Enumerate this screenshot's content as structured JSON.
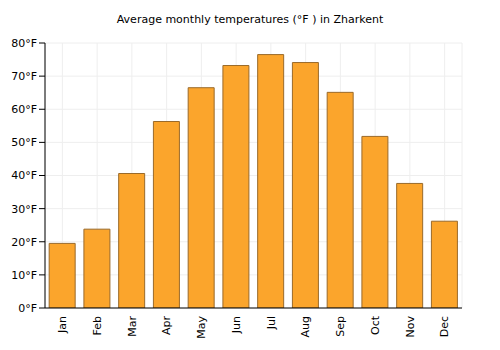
{
  "chart_data": {
    "type": "bar",
    "title": "Average monthly temperatures (°F ) in Zharkent",
    "categories": [
      "Jan",
      "Feb",
      "Mar",
      "Apr",
      "May",
      "Jun",
      "Jul",
      "Aug",
      "Sep",
      "Oct",
      "Nov",
      "Dec"
    ],
    "values": [
      19.5,
      23.8,
      40.6,
      56.3,
      66.5,
      73.2,
      76.5,
      74.1,
      65.1,
      51.8,
      37.6,
      26.2
    ],
    "color": "#fba52c",
    "ylim": [
      0,
      80
    ],
    "yticks": [
      {
        "value": 0,
        "label": "0°F"
      },
      {
        "value": 10,
        "label": "10°F"
      },
      {
        "value": 20,
        "label": "20°F"
      },
      {
        "value": 30,
        "label": "30°F"
      },
      {
        "value": 40,
        "label": "40°F"
      },
      {
        "value": 50,
        "label": "50°F"
      },
      {
        "value": 60,
        "label": "60°F"
      },
      {
        "value": 70,
        "label": "70°F"
      },
      {
        "value": 80,
        "label": "80°F"
      }
    ],
    "grid": true
  }
}
